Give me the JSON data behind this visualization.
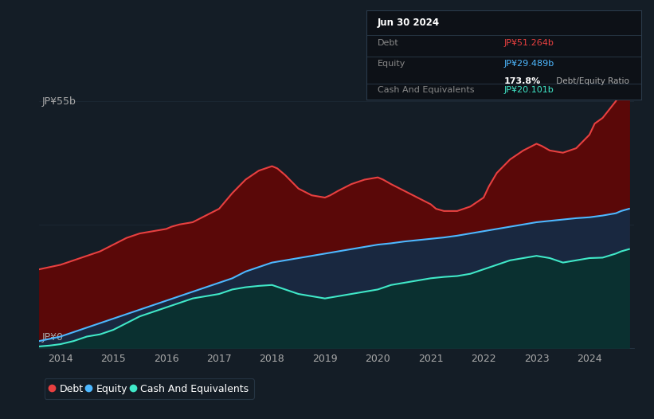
{
  "bg_color": "#141d26",
  "plot_bg_color": "#141d26",
  "ylabel_top": "JP¥55b",
  "ylabel_bottom": "JP¥0",
  "x_ticks": [
    2014,
    2015,
    2016,
    2017,
    2018,
    2019,
    2020,
    2021,
    2022,
    2023,
    2024
  ],
  "x_min": 2013.6,
  "x_max": 2024.85,
  "y_min": 0,
  "y_max": 57,
  "debt_color": "#e84040",
  "equity_color": "#4db8ff",
  "cash_color": "#40e8c8",
  "debt_fill_color": "#5a0808",
  "equity_fill_color": "#192840",
  "cash_fill_color": "#0a3030",
  "grid_color": "#2a3a4a",
  "info_box_bg": "#0d1117",
  "info_box_border": "#2a3a4a",
  "debt_data": [
    [
      2013.6,
      17.5
    ],
    [
      2013.8,
      18.0
    ],
    [
      2014.0,
      18.5
    ],
    [
      2014.25,
      19.5
    ],
    [
      2014.5,
      20.5
    ],
    [
      2014.75,
      21.5
    ],
    [
      2015.0,
      23.0
    ],
    [
      2015.25,
      24.5
    ],
    [
      2015.5,
      25.5
    ],
    [
      2015.75,
      26.0
    ],
    [
      2016.0,
      26.5
    ],
    [
      2016.1,
      27.0
    ],
    [
      2016.25,
      27.5
    ],
    [
      2016.5,
      28.0
    ],
    [
      2016.75,
      29.5
    ],
    [
      2017.0,
      31.0
    ],
    [
      2017.25,
      34.5
    ],
    [
      2017.5,
      37.5
    ],
    [
      2017.75,
      39.5
    ],
    [
      2018.0,
      40.5
    ],
    [
      2018.1,
      40.0
    ],
    [
      2018.25,
      38.5
    ],
    [
      2018.5,
      35.5
    ],
    [
      2018.75,
      34.0
    ],
    [
      2019.0,
      33.5
    ],
    [
      2019.1,
      34.0
    ],
    [
      2019.25,
      35.0
    ],
    [
      2019.5,
      36.5
    ],
    [
      2019.75,
      37.5
    ],
    [
      2020.0,
      38.0
    ],
    [
      2020.1,
      37.5
    ],
    [
      2020.25,
      36.5
    ],
    [
      2020.5,
      35.0
    ],
    [
      2020.75,
      33.5
    ],
    [
      2021.0,
      32.0
    ],
    [
      2021.1,
      31.0
    ],
    [
      2021.25,
      30.5
    ],
    [
      2021.5,
      30.5
    ],
    [
      2021.75,
      31.5
    ],
    [
      2022.0,
      33.5
    ],
    [
      2022.1,
      36.0
    ],
    [
      2022.25,
      39.0
    ],
    [
      2022.5,
      42.0
    ],
    [
      2022.75,
      44.0
    ],
    [
      2023.0,
      45.5
    ],
    [
      2023.1,
      45.0
    ],
    [
      2023.25,
      44.0
    ],
    [
      2023.5,
      43.5
    ],
    [
      2023.75,
      44.5
    ],
    [
      2024.0,
      47.5
    ],
    [
      2024.1,
      50.0
    ],
    [
      2024.25,
      51.264
    ],
    [
      2024.5,
      55.0
    ],
    [
      2024.6,
      57.0
    ],
    [
      2024.75,
      57.5
    ]
  ],
  "equity_data": [
    [
      2013.6,
      1.5
    ],
    [
      2013.8,
      2.0
    ],
    [
      2014.0,
      2.5
    ],
    [
      2014.25,
      3.5
    ],
    [
      2014.5,
      4.5
    ],
    [
      2014.75,
      5.5
    ],
    [
      2015.0,
      6.5
    ],
    [
      2015.25,
      7.5
    ],
    [
      2015.5,
      8.5
    ],
    [
      2015.75,
      9.5
    ],
    [
      2016.0,
      10.5
    ],
    [
      2016.25,
      11.5
    ],
    [
      2016.5,
      12.5
    ],
    [
      2016.75,
      13.5
    ],
    [
      2017.0,
      14.5
    ],
    [
      2017.25,
      15.5
    ],
    [
      2017.5,
      17.0
    ],
    [
      2017.75,
      18.0
    ],
    [
      2018.0,
      19.0
    ],
    [
      2018.25,
      19.5
    ],
    [
      2018.5,
      20.0
    ],
    [
      2018.75,
      20.5
    ],
    [
      2019.0,
      21.0
    ],
    [
      2019.25,
      21.5
    ],
    [
      2019.5,
      22.0
    ],
    [
      2019.75,
      22.5
    ],
    [
      2020.0,
      23.0
    ],
    [
      2020.25,
      23.3
    ],
    [
      2020.5,
      23.7
    ],
    [
      2020.75,
      24.0
    ],
    [
      2021.0,
      24.3
    ],
    [
      2021.25,
      24.6
    ],
    [
      2021.5,
      25.0
    ],
    [
      2021.75,
      25.5
    ],
    [
      2022.0,
      26.0
    ],
    [
      2022.25,
      26.5
    ],
    [
      2022.5,
      27.0
    ],
    [
      2022.75,
      27.5
    ],
    [
      2023.0,
      28.0
    ],
    [
      2023.25,
      28.3
    ],
    [
      2023.5,
      28.6
    ],
    [
      2023.75,
      28.9
    ],
    [
      2024.0,
      29.1
    ],
    [
      2024.25,
      29.489
    ],
    [
      2024.5,
      30.0
    ],
    [
      2024.6,
      30.5
    ],
    [
      2024.75,
      31.0
    ]
  ],
  "cash_data": [
    [
      2013.6,
      0.3
    ],
    [
      2013.8,
      0.5
    ],
    [
      2014.0,
      0.8
    ],
    [
      2014.25,
      1.5
    ],
    [
      2014.5,
      2.5
    ],
    [
      2014.75,
      3.0
    ],
    [
      2015.0,
      4.0
    ],
    [
      2015.25,
      5.5
    ],
    [
      2015.5,
      7.0
    ],
    [
      2015.75,
      8.0
    ],
    [
      2016.0,
      9.0
    ],
    [
      2016.25,
      10.0
    ],
    [
      2016.5,
      11.0
    ],
    [
      2016.75,
      11.5
    ],
    [
      2017.0,
      12.0
    ],
    [
      2017.25,
      13.0
    ],
    [
      2017.5,
      13.5
    ],
    [
      2017.75,
      13.8
    ],
    [
      2018.0,
      14.0
    ],
    [
      2018.25,
      13.0
    ],
    [
      2018.5,
      12.0
    ],
    [
      2018.75,
      11.5
    ],
    [
      2019.0,
      11.0
    ],
    [
      2019.25,
      11.5
    ],
    [
      2019.5,
      12.0
    ],
    [
      2019.75,
      12.5
    ],
    [
      2020.0,
      13.0
    ],
    [
      2020.25,
      14.0
    ],
    [
      2020.5,
      14.5
    ],
    [
      2020.75,
      15.0
    ],
    [
      2021.0,
      15.5
    ],
    [
      2021.25,
      15.8
    ],
    [
      2021.5,
      16.0
    ],
    [
      2021.75,
      16.5
    ],
    [
      2022.0,
      17.5
    ],
    [
      2022.25,
      18.5
    ],
    [
      2022.5,
      19.5
    ],
    [
      2022.75,
      20.0
    ],
    [
      2023.0,
      20.5
    ],
    [
      2023.25,
      20.0
    ],
    [
      2023.5,
      19.0
    ],
    [
      2023.75,
      19.5
    ],
    [
      2024.0,
      20.0
    ],
    [
      2024.25,
      20.101
    ],
    [
      2024.5,
      21.0
    ],
    [
      2024.6,
      21.5
    ],
    [
      2024.75,
      22.0
    ]
  ],
  "legend_items": [
    {
      "label": "Debt",
      "color": "#e84040"
    },
    {
      "label": "Equity",
      "color": "#4db8ff"
    },
    {
      "label": "Cash And Equivalents",
      "color": "#40e8c8"
    }
  ],
  "info_box": {
    "title": "Jun 30 2024",
    "rows": [
      {
        "label": "Debt",
        "value": "JP¥51.264b",
        "value_color": "#e84040"
      },
      {
        "label": "Equity",
        "value": "JP¥29.489b",
        "value_color": "#4db8ff"
      },
      {
        "label": "",
        "value": "173.8% Debt/Equity Ratio",
        "value_color": "white",
        "bold_prefix": "173.8%"
      },
      {
        "label": "Cash And Equivalents",
        "value": "JP¥20.101b",
        "value_color": "#40e8c8"
      }
    ]
  }
}
